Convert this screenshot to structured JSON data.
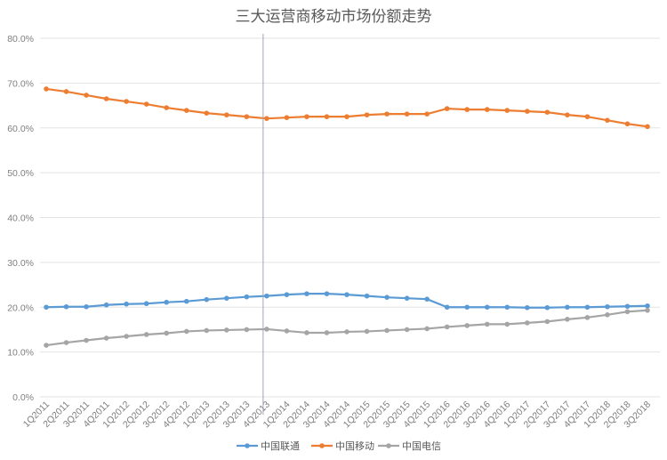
{
  "chart_data": {
    "type": "line",
    "title": "三大运营商移动市场份额走势",
    "xlabel": "",
    "ylabel": "",
    "ylim": [
      0,
      80
    ],
    "yticks": [
      "0.0%",
      "10.0%",
      "20.0%",
      "30.0%",
      "40.0%",
      "50.0%",
      "60.0%",
      "70.0%",
      "80.0%"
    ],
    "grid": true,
    "legend_position": "bottom",
    "categories": [
      "1Q2011",
      "2Q2011",
      "3Q2011",
      "4Q2011",
      "1Q2012",
      "2Q2012",
      "3Q2012",
      "4Q2012",
      "1Q2013",
      "2Q2013",
      "3Q2013",
      "4Q2013",
      "1Q2014",
      "2Q2014",
      "3Q2014",
      "4Q2014",
      "1Q2015",
      "2Q2015",
      "3Q2015",
      "4Q2015",
      "1Q2016",
      "2Q2016",
      "3Q2016",
      "4Q2016",
      "1Q2017",
      "2Q2017",
      "3Q2017",
      "4Q2017",
      "1Q2018",
      "2Q2018",
      "3Q2018"
    ],
    "series": [
      {
        "name": "中国联通",
        "color": "#5b9bd5",
        "values": [
          20.0,
          20.1,
          20.1,
          20.5,
          20.7,
          20.8,
          21.1,
          21.3,
          21.7,
          22.0,
          22.3,
          22.5,
          22.8,
          23.0,
          23.0,
          22.8,
          22.5,
          22.2,
          22.0,
          21.8,
          20.0,
          20.0,
          20.0,
          20.0,
          19.9,
          19.9,
          20.0,
          20.0,
          20.1,
          20.2,
          20.3
        ]
      },
      {
        "name": "中国移动",
        "color": "#ed7d31",
        "values": [
          68.7,
          68.1,
          67.3,
          66.5,
          65.9,
          65.3,
          64.5,
          63.9,
          63.3,
          62.9,
          62.5,
          62.1,
          62.3,
          62.5,
          62.5,
          62.5,
          62.9,
          63.1,
          63.1,
          63.1,
          64.3,
          64.1,
          64.1,
          63.9,
          63.7,
          63.5,
          62.9,
          62.5,
          61.7,
          60.9,
          60.3
        ]
      },
      {
        "name": "中国电信",
        "color": "#a5a5a5",
        "values": [
          11.5,
          12.1,
          12.6,
          13.1,
          13.5,
          13.9,
          14.2,
          14.6,
          14.8,
          14.9,
          15.0,
          15.1,
          14.7,
          14.3,
          14.3,
          14.5,
          14.6,
          14.8,
          15.0,
          15.2,
          15.6,
          15.9,
          16.2,
          16.2,
          16.5,
          16.8,
          17.3,
          17.7,
          18.3,
          19.0,
          19.3
        ]
      }
    ],
    "marker_line_category": "4Q2013"
  }
}
